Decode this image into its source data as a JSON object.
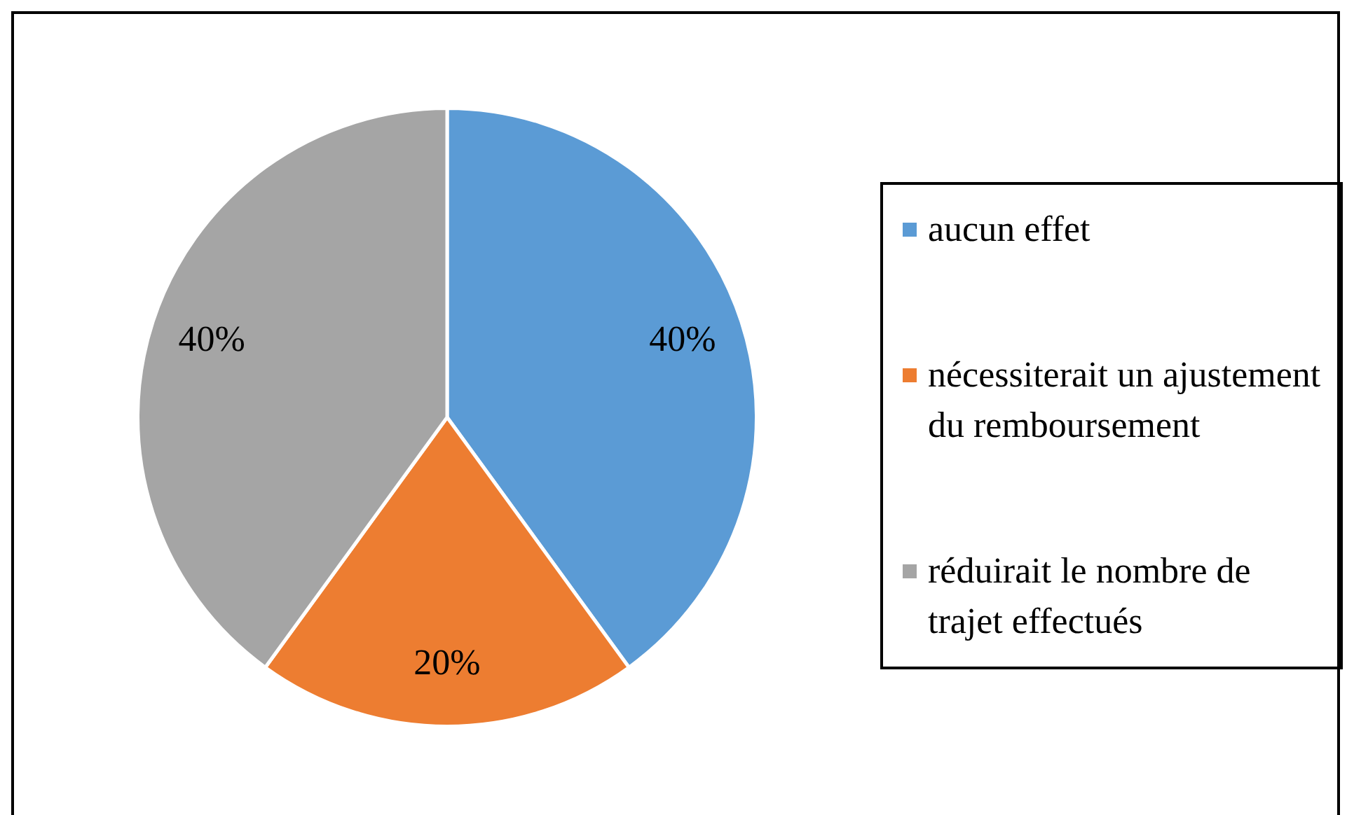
{
  "chart_data": {
    "type": "pie",
    "categories": [
      "aucun effet",
      "nécessiterait un ajustement du remboursement",
      "réduirait le nombre de trajet effectués"
    ],
    "values": [
      40,
      20,
      40
    ],
    "colors": [
      "#5b9bd5",
      "#ed7d31",
      "#a5a5a5"
    ],
    "value_labels": [
      "40%",
      "20%",
      "40%"
    ],
    "legend": "right"
  }
}
